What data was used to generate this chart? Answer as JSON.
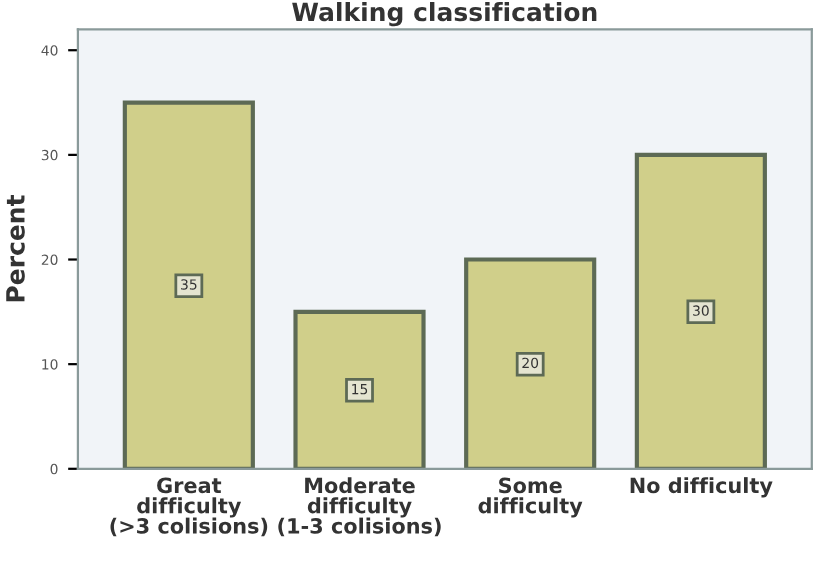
{
  "chart_data": {
    "type": "bar",
    "title": "Walking classification",
    "ylabel": "Percent",
    "categories": [
      "Great\ndifficulty\n(>3 colisions)",
      "Moderate\ndifficulty\n(1-3 colisions)",
      "Some\ndifficulty",
      "No difficulty"
    ],
    "values": [
      35,
      15,
      20,
      30
    ],
    "color": "#d0cf8a",
    "ylim": [
      0,
      42
    ],
    "yticks": [
      0,
      10,
      20,
      30,
      40
    ],
    "data_labels": true,
    "grid": false,
    "legend": false
  }
}
